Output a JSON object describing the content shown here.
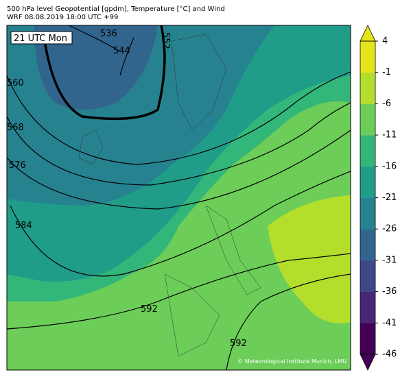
{
  "header": {
    "title": "500 hPa level Geopotential [gpdm], Temperature [°C] and Wind",
    "subtitle": "WRF 08.08.2019 18:00 UTC +99"
  },
  "time_label": "21 UTC Mon",
  "contour_labels": [
    "536",
    "544",
    "552",
    "560",
    "568",
    "576",
    "584",
    "592",
    "592"
  ],
  "copyright": "© Meteorological Institute Munich, LMU",
  "colorbar": {
    "lim": [
      -46,
      4
    ],
    "ticks": [
      4,
      -1,
      -6,
      -11,
      -16,
      -21,
      -26,
      -31,
      -36,
      -41,
      -46
    ],
    "colors": [
      "#440154",
      "#482677",
      "#3f4788",
      "#32658e",
      "#26828e",
      "#1f9d89",
      "#33b679",
      "#6ccd59",
      "#b4de2c",
      "#e4e419"
    ]
  }
}
